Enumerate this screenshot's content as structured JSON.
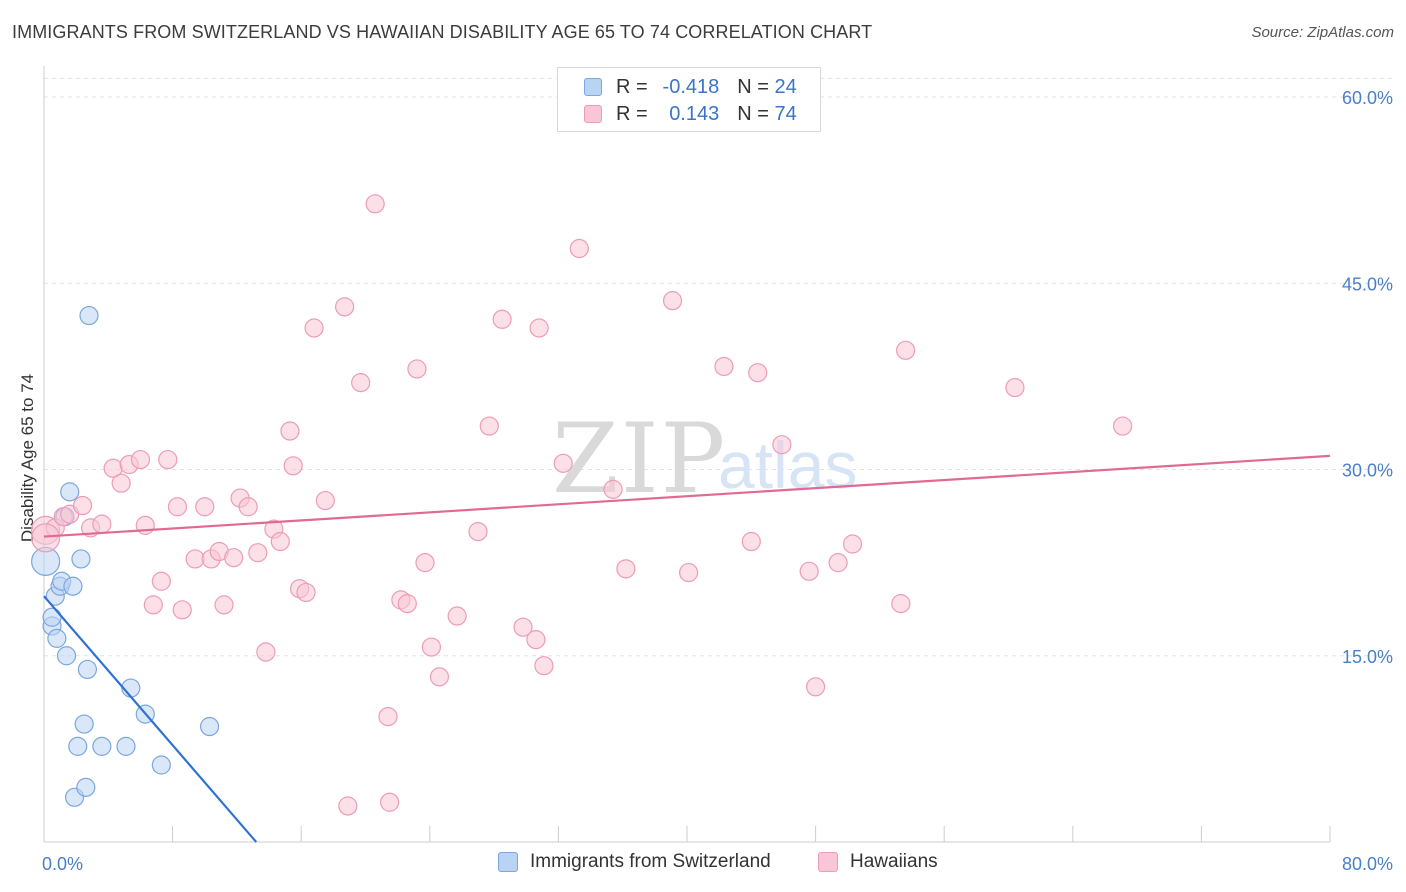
{
  "title": "IMMIGRANTS FROM SWITZERLAND VS HAWAIIAN DISABILITY AGE 65 TO 74 CORRELATION CHART",
  "source": "Source: ZipAtlas.com",
  "watermark": {
    "zip": "ZIP",
    "atlas": "atlas"
  },
  "legend": {
    "series1": {
      "r_label": "R =",
      "r_value": "-0.418",
      "n_label": "N =",
      "n_value": "24"
    },
    "series2": {
      "r_label": "R =",
      "r_value": "0.143",
      "n_label": "N =",
      "n_value": "74"
    }
  },
  "colors": {
    "blue_fill": "#b9d3f3",
    "blue_stroke": "#7aa7e0",
    "blue_line": "#2f72d3",
    "pink_fill": "#f8c6d6",
    "pink_stroke": "#ee9bb7",
    "pink_line": "#e06a93",
    "tick_label": "#4a7fc9",
    "grid": "#e2e2e2"
  },
  "chart_data": {
    "type": "scatter",
    "title": "IMMIGRANTS FROM SWITZERLAND VS HAWAIIAN DISABILITY AGE 65 TO 74 CORRELATION CHART",
    "xlabel": "",
    "ylabel": "Disability Age 65 to 74",
    "xlim": [
      0,
      80
    ],
    "ylim": [
      0,
      62.5
    ],
    "x_tick_labels": [
      "0.0%",
      "80.0%"
    ],
    "y_ticks": [
      15,
      30,
      45,
      60
    ],
    "y_tick_labels": [
      "15.0%",
      "30.0%",
      "45.0%",
      "60.0%"
    ],
    "series": [
      {
        "name": "Immigrants from Switzerland",
        "color": "blue",
        "trend": {
          "x0": 0,
          "y0": 19.8,
          "x1": 13.2,
          "y1": 0
        },
        "points": [
          [
            0.1,
            22.6
          ],
          [
            0.5,
            17.4
          ],
          [
            0.5,
            18.1
          ],
          [
            0.7,
            19.8
          ],
          [
            0.8,
            16.4
          ],
          [
            1.0,
            20.6
          ],
          [
            1.1,
            21.0
          ],
          [
            1.3,
            26.2
          ],
          [
            1.4,
            15.0
          ],
          [
            1.6,
            28.2
          ],
          [
            1.8,
            20.6
          ],
          [
            1.9,
            3.6
          ],
          [
            2.1,
            7.7
          ],
          [
            2.3,
            22.8
          ],
          [
            2.5,
            9.5
          ],
          [
            2.6,
            4.4
          ],
          [
            2.7,
            13.9
          ],
          [
            2.8,
            42.4
          ],
          [
            3.6,
            7.7
          ],
          [
            5.1,
            7.7
          ],
          [
            5.4,
            12.4
          ],
          [
            6.3,
            10.3
          ],
          [
            7.3,
            6.2
          ],
          [
            10.3,
            9.3
          ]
        ]
      },
      {
        "name": "Hawaiians",
        "color": "pink",
        "trend": {
          "x0": 0,
          "y0": 24.6,
          "x1": 80,
          "y1": 31.1
        },
        "points": [
          [
            0.1,
            25.1
          ],
          [
            0.7,
            25.3
          ],
          [
            1.2,
            26.2
          ],
          [
            1.6,
            26.4
          ],
          [
            2.4,
            27.1
          ],
          [
            2.9,
            25.3
          ],
          [
            3.6,
            25.6
          ],
          [
            4.3,
            30.1
          ],
          [
            4.8,
            28.9
          ],
          [
            5.3,
            30.4
          ],
          [
            6.0,
            30.8
          ],
          [
            6.3,
            25.5
          ],
          [
            6.8,
            19.1
          ],
          [
            7.3,
            21.0
          ],
          [
            7.7,
            30.8
          ],
          [
            8.3,
            27.0
          ],
          [
            8.6,
            18.7
          ],
          [
            9.4,
            22.8
          ],
          [
            10.0,
            27.0
          ],
          [
            10.4,
            22.8
          ],
          [
            10.9,
            23.4
          ],
          [
            11.2,
            19.1
          ],
          [
            11.8,
            22.9
          ],
          [
            12.2,
            27.7
          ],
          [
            12.7,
            27.0
          ],
          [
            13.3,
            23.3
          ],
          [
            13.8,
            15.3
          ],
          [
            14.3,
            25.2
          ],
          [
            14.7,
            24.2
          ],
          [
            15.3,
            33.1
          ],
          [
            15.5,
            30.3
          ],
          [
            15.9,
            20.4
          ],
          [
            16.3,
            20.1
          ],
          [
            16.8,
            41.4
          ],
          [
            17.5,
            27.5
          ],
          [
            18.7,
            43.1
          ],
          [
            19.7,
            37.0
          ],
          [
            20.6,
            51.4
          ],
          [
            21.4,
            10.1
          ],
          [
            21.5,
            3.2
          ],
          [
            22.2,
            19.5
          ],
          [
            22.6,
            19.2
          ],
          [
            23.2,
            38.1
          ],
          [
            23.7,
            22.5
          ],
          [
            24.1,
            15.7
          ],
          [
            24.6,
            13.3
          ],
          [
            25.7,
            18.2
          ],
          [
            27.0,
            25.0
          ],
          [
            27.7,
            33.5
          ],
          [
            28.5,
            42.1
          ],
          [
            29.8,
            17.3
          ],
          [
            30.6,
            16.3
          ],
          [
            30.8,
            41.4
          ],
          [
            31.1,
            14.2
          ],
          [
            32.3,
            30.5
          ],
          [
            33.3,
            47.8
          ],
          [
            35.4,
            28.4
          ],
          [
            36.2,
            22.0
          ],
          [
            39.1,
            43.6
          ],
          [
            40.1,
            21.7
          ],
          [
            42.3,
            38.3
          ],
          [
            44.0,
            24.2
          ],
          [
            44.4,
            37.8
          ],
          [
            45.9,
            32.0
          ],
          [
            47.6,
            21.8
          ],
          [
            48.0,
            12.5
          ],
          [
            49.4,
            22.5
          ],
          [
            50.3,
            24.0
          ],
          [
            53.3,
            19.2
          ],
          [
            53.6,
            39.6
          ],
          [
            60.4,
            36.6
          ],
          [
            67.1,
            33.5
          ],
          [
            18.9,
            2.9
          ],
          [
            0.1,
            24.5
          ]
        ]
      }
    ]
  }
}
